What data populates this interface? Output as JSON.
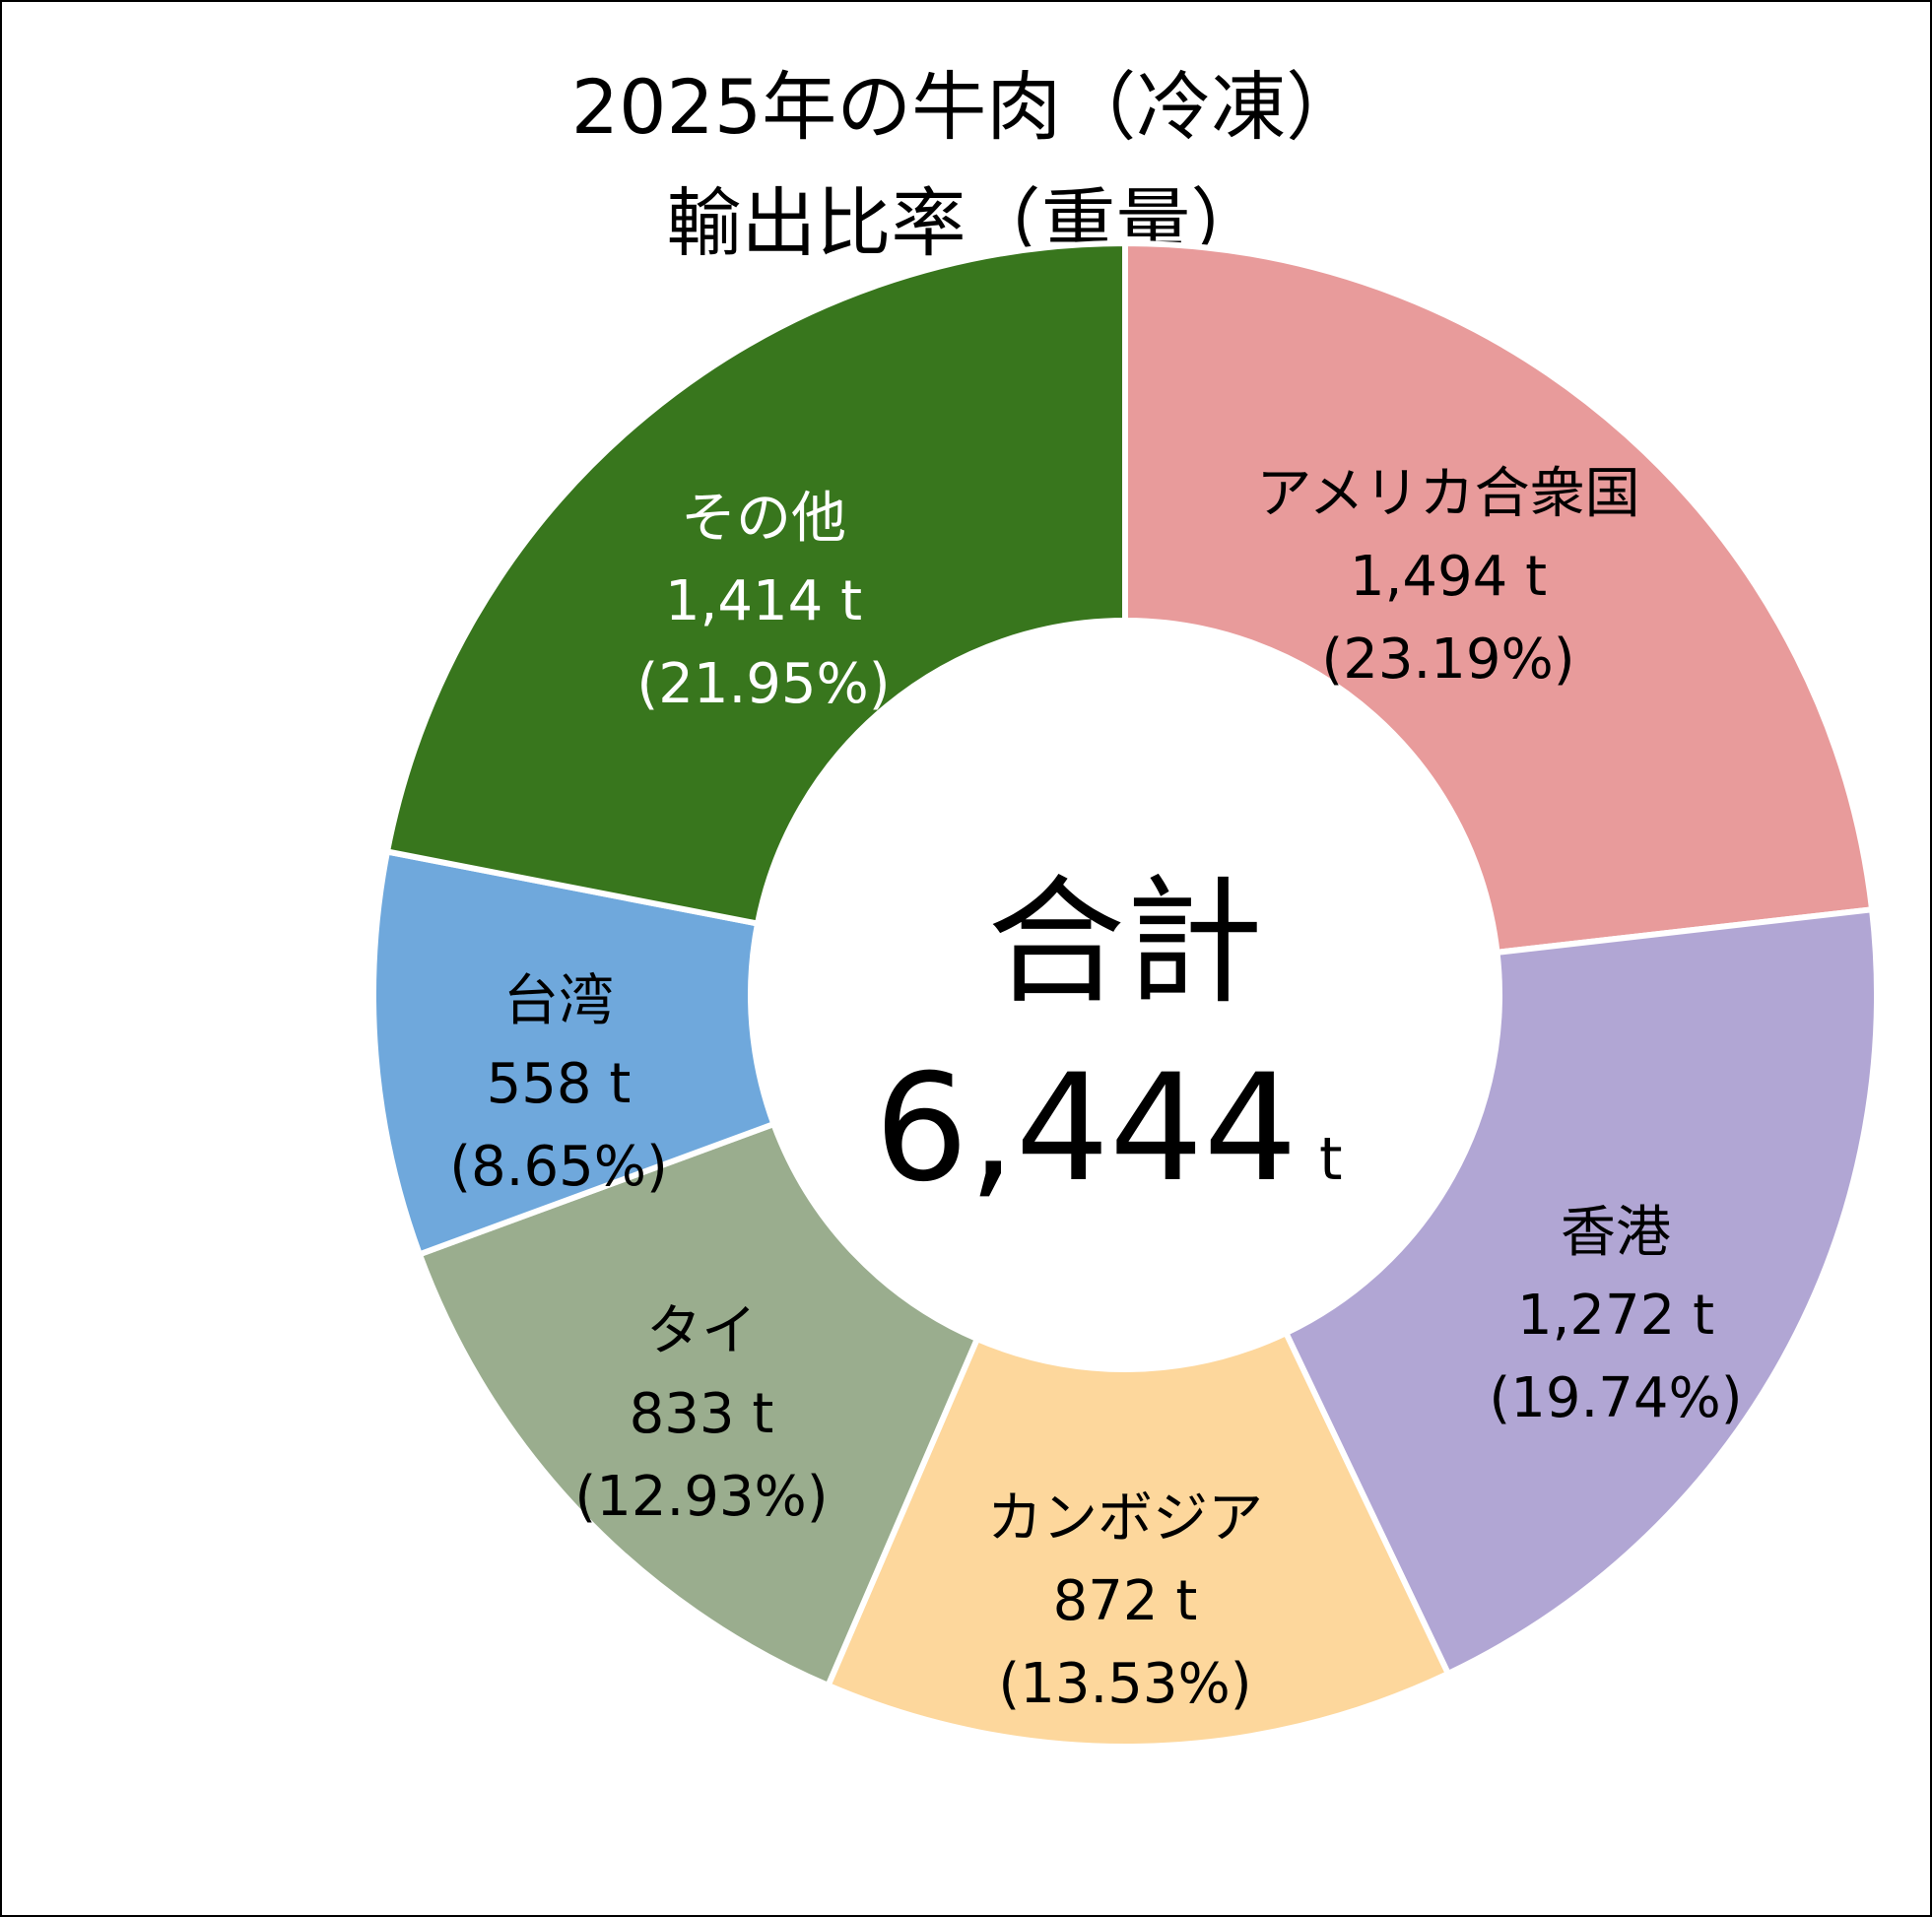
{
  "chart_data": {
    "type": "pie",
    "title": [
      "2025年の牛肉（冷凍）",
      "輸出比率（重量）"
    ],
    "unit": "t",
    "total": {
      "label": "合計",
      "value": 6444,
      "text": "6,444"
    },
    "slices": [
      {
        "name": "アメリカ合衆国",
        "value": 1494,
        "value_text": "1,494",
        "percent_text": "(23.19%)",
        "color": "#E89B9B",
        "text_color": "#000000"
      },
      {
        "name": "香港",
        "value": 1272,
        "value_text": "1,272",
        "percent_text": "(19.74%)",
        "color": "#B1A6D4",
        "text_color": "#000000"
      },
      {
        "name": "カンボジア",
        "value": 872,
        "value_text": "872",
        "percent_text": "(13.53%)",
        "color": "#FDD79C",
        "text_color": "#000000"
      },
      {
        "name": "タイ",
        "value": 833,
        "value_text": "833",
        "percent_text": "(12.93%)",
        "color": "#9AAD8E",
        "text_color": "#000000"
      },
      {
        "name": "台湾",
        "value": 558,
        "value_text": "558",
        "percent_text": "(8.65%)",
        "color": "#6FA8DC",
        "text_color": "#000000"
      },
      {
        "name": "その他",
        "value": 1414,
        "value_text": "1,414",
        "percent_text": "(21.95%)",
        "color": "#38761D",
        "text_color": "#FFFFFF"
      }
    ]
  }
}
